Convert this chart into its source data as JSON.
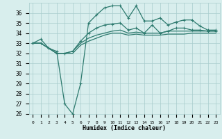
{
  "xlabel": "Humidex (Indice chaleur)",
  "x": [
    0,
    1,
    2,
    3,
    4,
    5,
    6,
    7,
    8,
    9,
    10,
    11,
    12,
    13,
    14,
    15,
    16,
    17,
    18,
    19,
    20,
    21,
    22,
    23
  ],
  "line1": [
    33.0,
    33.4,
    32.5,
    32.2,
    27.0,
    26.0,
    29.0,
    35.0,
    35.8,
    36.5,
    36.7,
    36.7,
    35.5,
    36.7,
    35.2,
    35.2,
    35.5,
    34.8,
    35.1,
    35.3,
    35.3,
    34.7,
    34.3,
    34.3
  ],
  "line2": [
    33.0,
    33.0,
    32.5,
    32.0,
    32.0,
    32.2,
    33.2,
    34.0,
    34.5,
    34.8,
    34.9,
    35.0,
    34.3,
    34.5,
    34.0,
    34.8,
    34.0,
    34.2,
    34.5,
    34.5,
    34.3,
    34.3,
    34.2,
    34.2
  ],
  "line3": [
    33.0,
    33.0,
    32.5,
    32.0,
    32.0,
    32.2,
    33.0,
    33.5,
    33.8,
    34.0,
    34.2,
    34.3,
    34.0,
    34.1,
    34.0,
    34.0,
    34.0,
    34.2,
    34.2,
    34.2,
    34.2,
    34.2,
    34.2,
    34.2
  ],
  "line4": [
    33.0,
    33.0,
    32.5,
    32.0,
    32.0,
    32.0,
    32.8,
    33.2,
    33.5,
    33.8,
    34.0,
    34.0,
    33.8,
    33.9,
    33.8,
    33.8,
    33.8,
    33.9,
    33.9,
    33.9,
    34.0,
    34.0,
    34.0,
    34.0
  ],
  "ylim": [
    26,
    37
  ],
  "xlim": [
    -0.5,
    23.5
  ],
  "yticks": [
    26,
    27,
    28,
    29,
    30,
    31,
    32,
    33,
    34,
    35,
    36
  ],
  "xticks": [
    0,
    1,
    2,
    3,
    4,
    5,
    6,
    7,
    8,
    9,
    10,
    11,
    12,
    13,
    14,
    15,
    16,
    17,
    18,
    19,
    20,
    21,
    22,
    23
  ],
  "line_color": "#2d7a6e",
  "bg_color": "#d8eeed",
  "grid_color": "#a8cccc",
  "marker_size": 3,
  "line_width": 0.9
}
